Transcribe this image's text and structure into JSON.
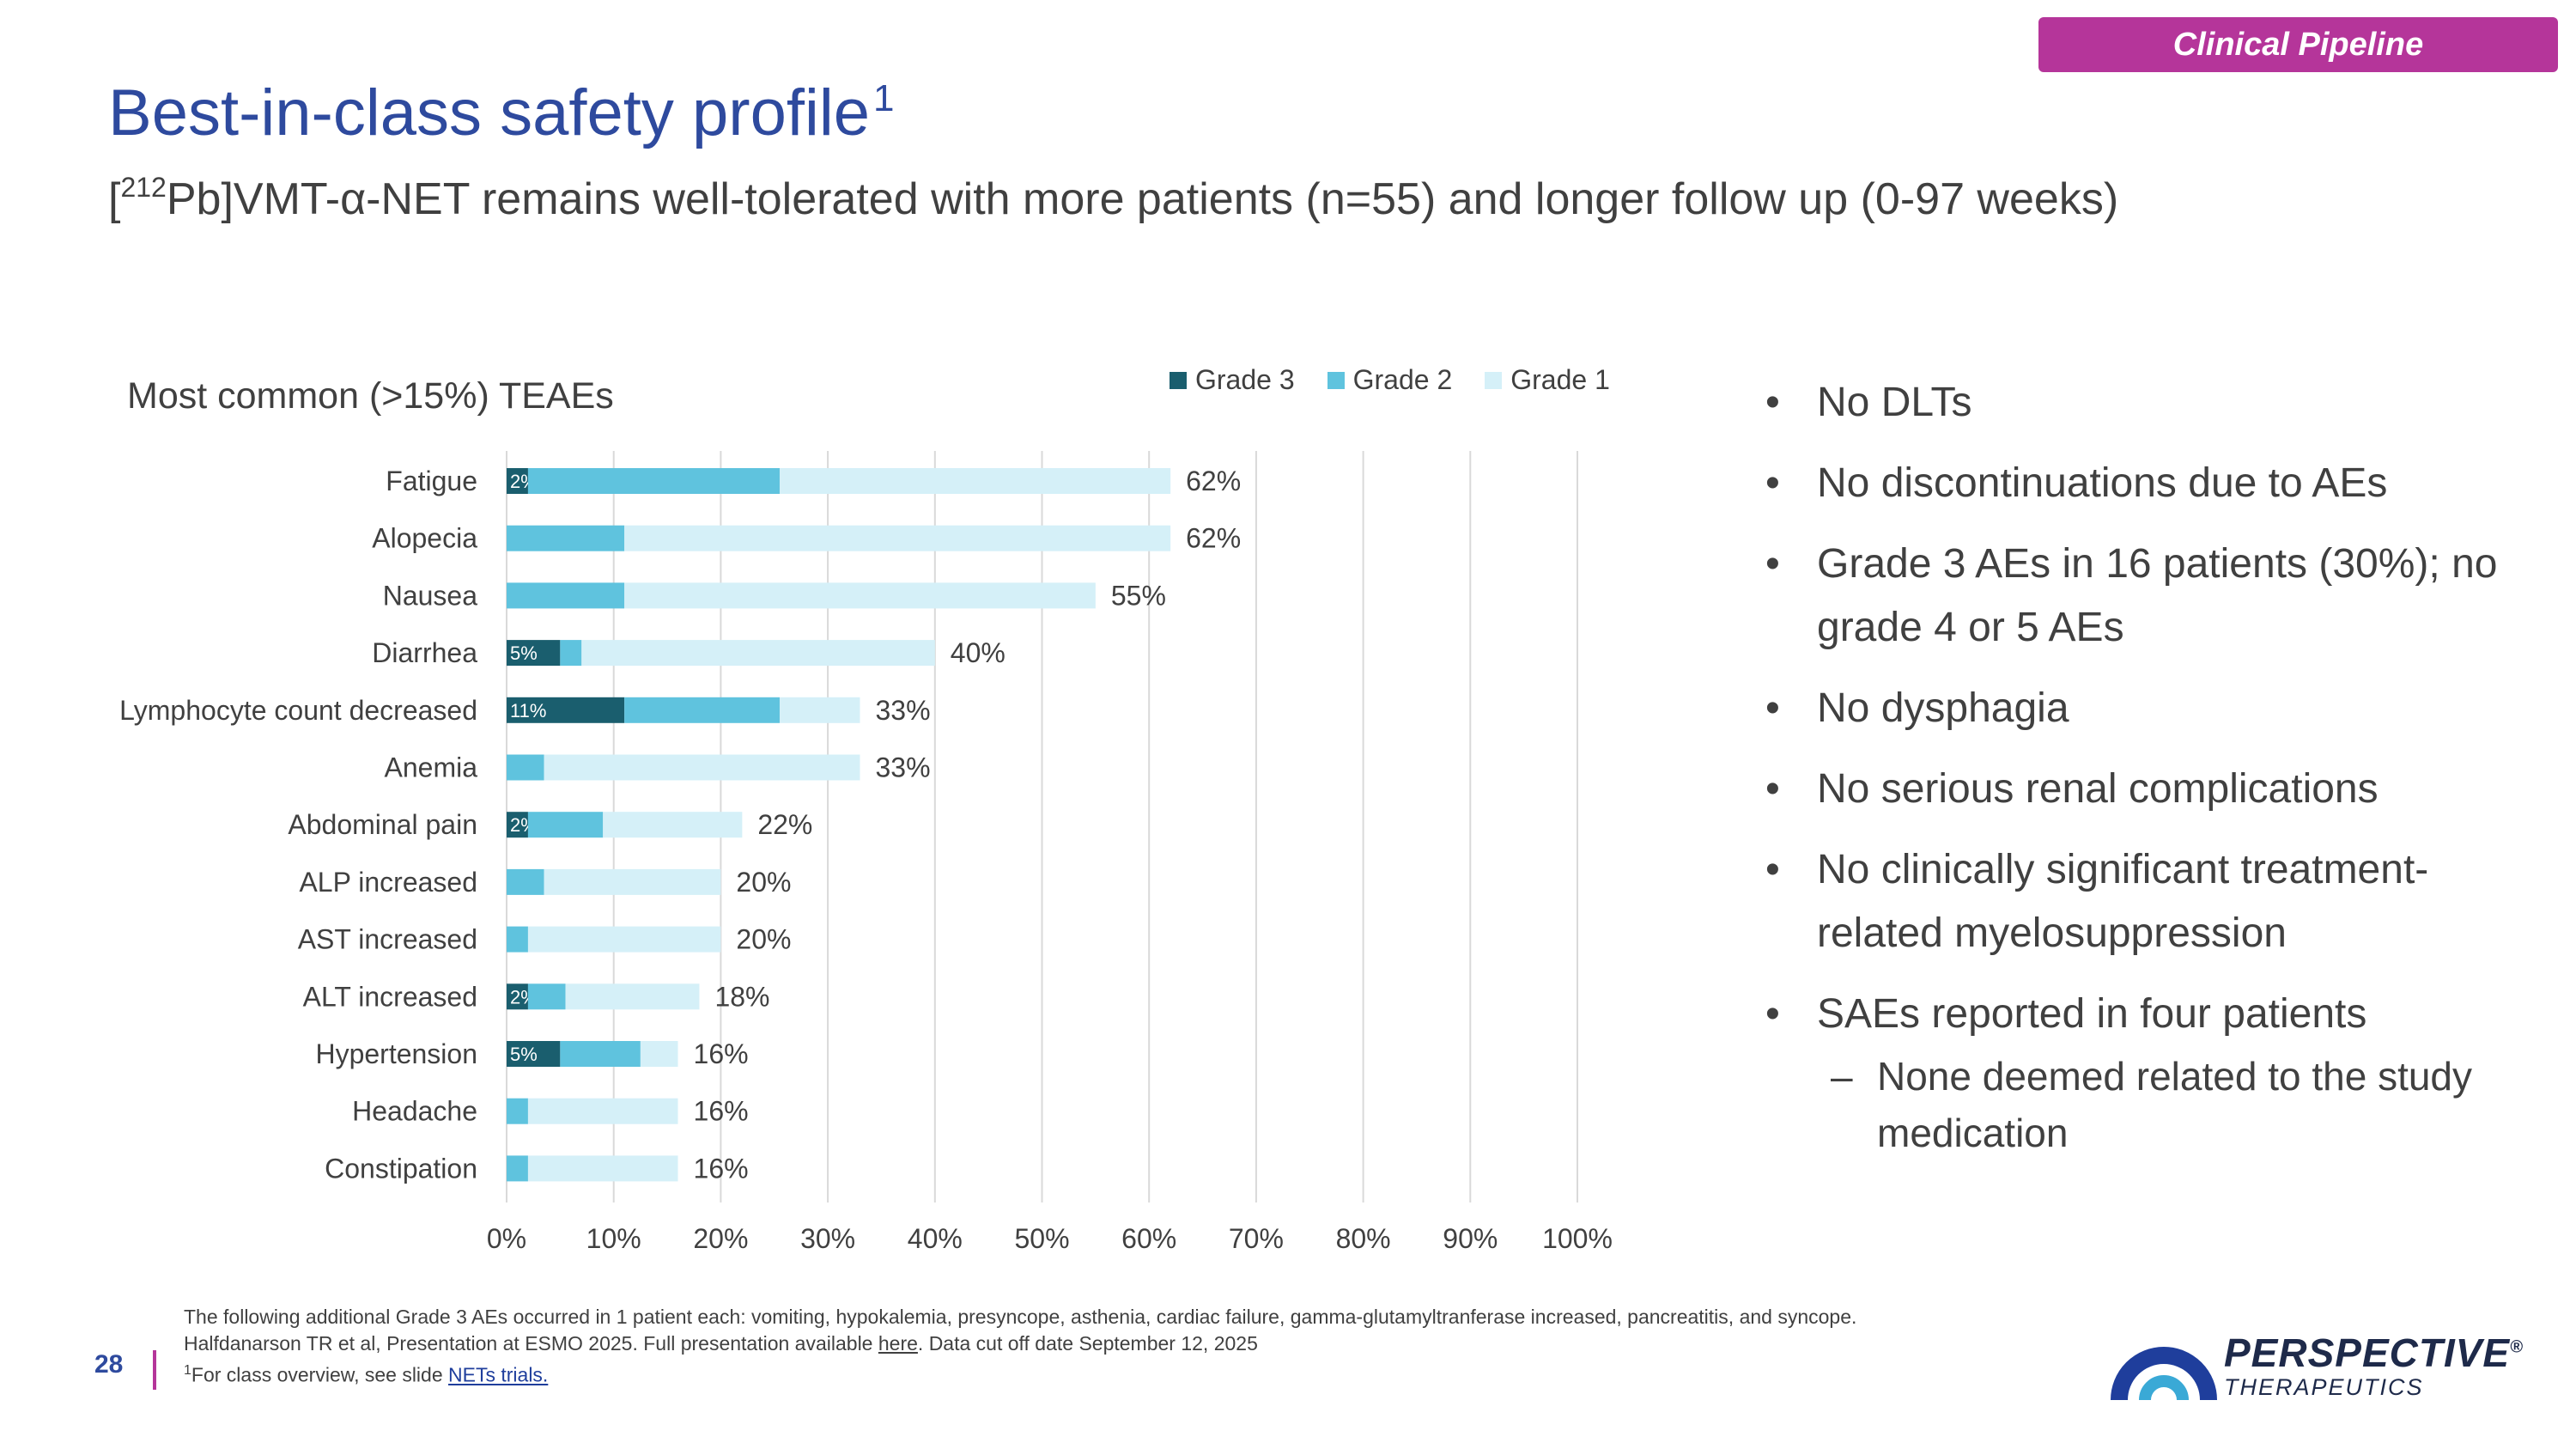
{
  "header": {
    "badge": "Clinical Pipeline",
    "title": "Best-in-class safety profile",
    "title_sup": "1",
    "subtitle_pre": "[",
    "subtitle_sup": "212",
    "subtitle_post": "Pb]VMT-α-NET remains well-tolerated with more patients (n=55) and longer follow up (0-97 weeks)"
  },
  "chart_data": {
    "type": "bar",
    "orientation": "horizontal",
    "stacked": true,
    "title": "Most common (>15%) TEAEs",
    "categories": [
      "Fatigue",
      "Alopecia",
      "Nausea",
      "Diarrhea",
      "Lymphocyte count decreased",
      "Anemia",
      "Abdominal pain",
      "ALP increased",
      "AST increased",
      "ALT increased",
      "Hypertension",
      "Headache",
      "Constipation"
    ],
    "series": [
      {
        "name": "Grade 3",
        "color": "#1a5e6e",
        "values": [
          2,
          0,
          0,
          5,
          11,
          0,
          2,
          0,
          0,
          2,
          5,
          0,
          0
        ]
      },
      {
        "name": "Grade 2",
        "color": "#5fc3de",
        "values": [
          23.5,
          11,
          11,
          2,
          14.5,
          3.5,
          7,
          3.5,
          2,
          3.5,
          7.5,
          2,
          2
        ]
      },
      {
        "name": "Grade 1",
        "color": "#d5f0f8",
        "values": [
          36.5,
          51,
          44,
          33,
          7.5,
          29.5,
          13,
          16.5,
          18,
          12.5,
          3.5,
          14,
          14
        ]
      }
    ],
    "grade3_labels": [
      "2%",
      "",
      "",
      "5%",
      "11%",
      "",
      "2%",
      "",
      "",
      "2%",
      "5%",
      "",
      ""
    ],
    "total_labels": [
      "62%",
      "62%",
      "55%",
      "40%",
      "33%",
      "33%",
      "22%",
      "20%",
      "20%",
      "18%",
      "16%",
      "16%",
      "16%"
    ],
    "totals": [
      62,
      62,
      55,
      40,
      33,
      33,
      22,
      20,
      20,
      18,
      16,
      16,
      16
    ],
    "x_ticks": [
      "0%",
      "10%",
      "20%",
      "30%",
      "40%",
      "50%",
      "60%",
      "70%",
      "80%",
      "90%",
      "100%"
    ],
    "xlim": [
      0,
      100
    ],
    "legend": [
      "Grade 3",
      "Grade 2",
      "Grade 1"
    ],
    "legend_position": "top-right",
    "grid": true
  },
  "bullets": [
    "No DLTs",
    "No discontinuations due to AEs",
    "Grade 3 AEs in 16 patients (30%); no grade 4 or 5 AEs",
    "No dysphagia",
    "No serious renal complications",
    "No clinically significant treatment-related myelosuppression",
    "SAEs reported in four patients"
  ],
  "sub_bullet": "None deemed related to the study medication",
  "footnote": {
    "line1": "The following additional Grade 3 AEs occurred in 1 patient each: vomiting, hypokalemia, presyncope, asthenia, cardiac failure, gamma-glutamyltranferase increased, pancreatitis, and syncope.",
    "line2_pre": "Halfdanarson TR et al, Presentation at ESMO 2025. Full presentation available ",
    "line2_link": "here",
    "line2_post": ". Data cut off date September 12, 2025",
    "line3_sup": "1",
    "line3_pre": "For class overview, see slide ",
    "line3_link": "NETs trials."
  },
  "page_number": "28",
  "logo": {
    "name": "PERSPECTIVE",
    "reg": "®",
    "sub": "THERAPEUTICS"
  }
}
